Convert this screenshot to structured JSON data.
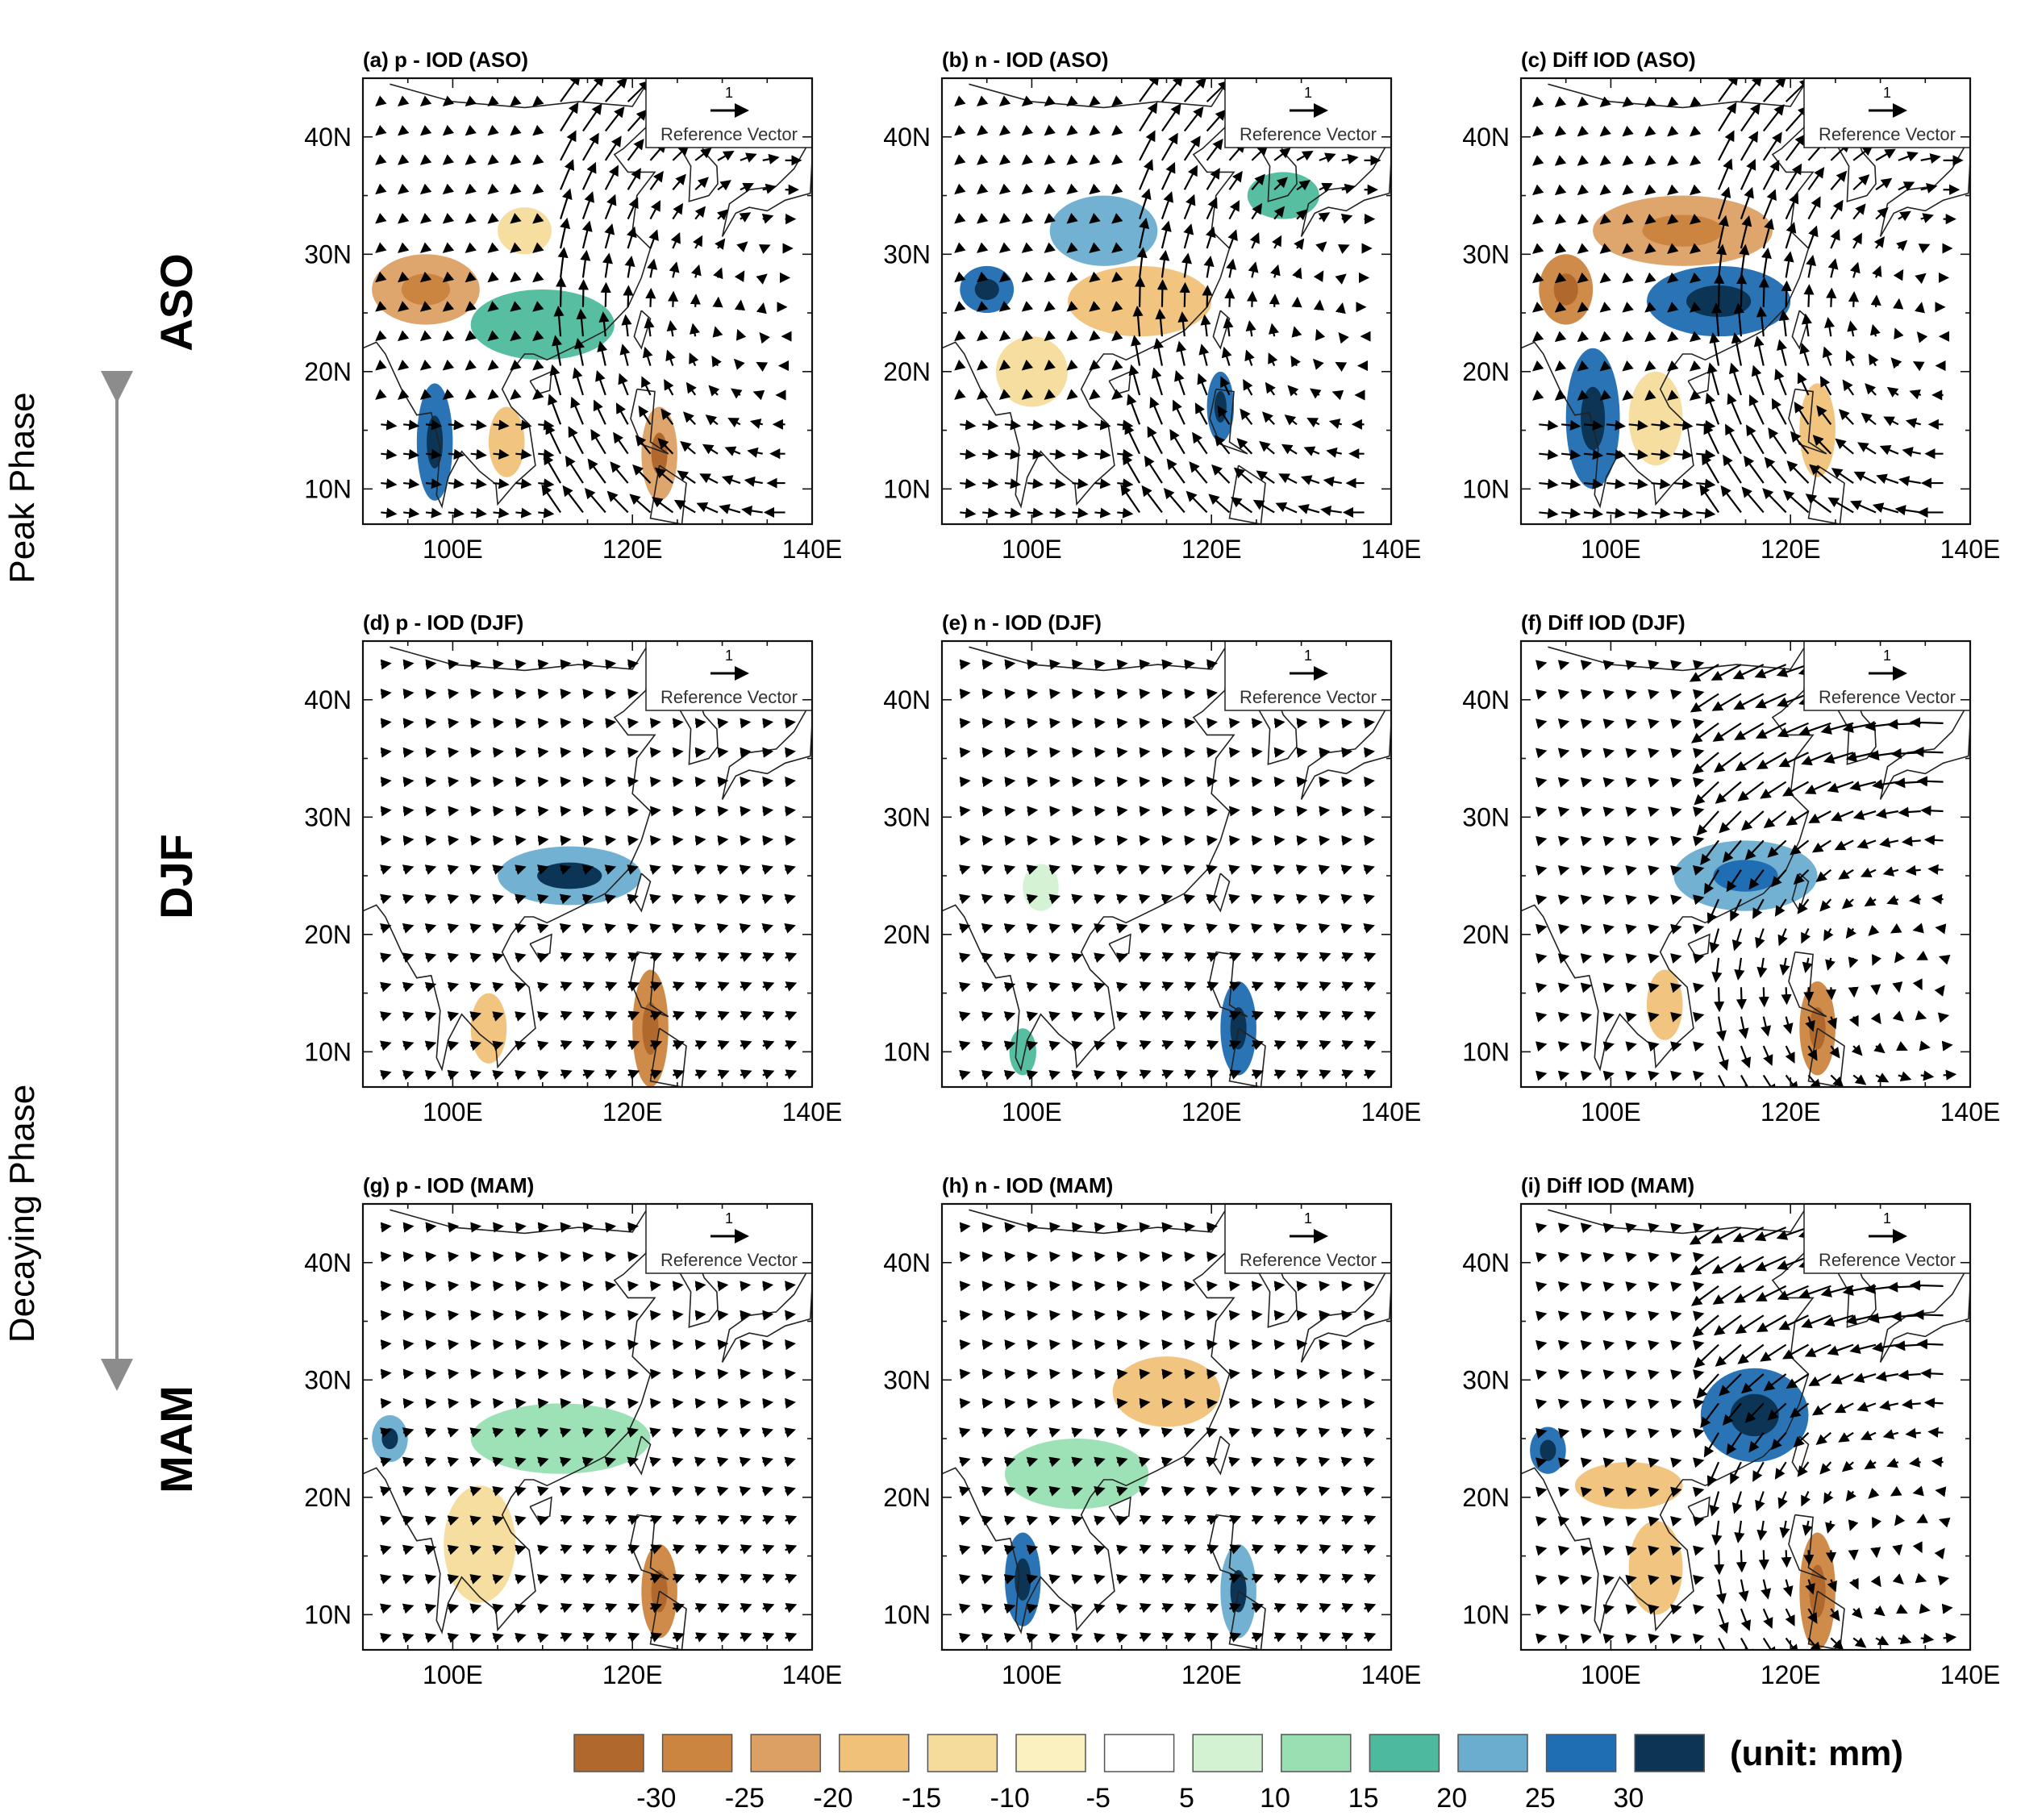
{
  "chart_data": {
    "type": "map-contour-vector",
    "rows": [
      {
        "season_label": "ASO"
      },
      {
        "season_label": "DJF"
      },
      {
        "season_label": "MAM"
      }
    ],
    "phases": {
      "peak": "Peak Phase",
      "decaying": "Decaying Phase"
    },
    "panels": [
      {
        "title": "(a) p - IOD (ASO)",
        "vector_pattern": "cyclone",
        "blobs": [
          {
            "lon": 97,
            "lat": 27,
            "rx": 6,
            "ry": 3,
            "v": -22
          },
          {
            "lon": 110,
            "lat": 24,
            "rx": 8,
            "ry": 3,
            "v": 18
          },
          {
            "lon": 98,
            "lat": 14,
            "rx": 2,
            "ry": 5,
            "v": 28
          },
          {
            "lon": 108,
            "lat": 32,
            "rx": 3,
            "ry": 2,
            "v": -14
          },
          {
            "lon": 123,
            "lat": 13,
            "rx": 2,
            "ry": 4,
            "v": -25
          },
          {
            "lon": 106,
            "lat": 14,
            "rx": 2,
            "ry": 3,
            "v": -18
          }
        ]
      },
      {
        "title": "(b) n - IOD (ASO)",
        "vector_pattern": "cyclone",
        "blobs": [
          {
            "lon": 108,
            "lat": 32,
            "rx": 6,
            "ry": 3,
            "v": 20
          },
          {
            "lon": 112,
            "lat": 26,
            "rx": 8,
            "ry": 3,
            "v": -17
          },
          {
            "lon": 95,
            "lat": 27,
            "rx": 3,
            "ry": 2,
            "v": 26
          },
          {
            "lon": 121,
            "lat": 17,
            "rx": 1.5,
            "ry": 3,
            "v": 27
          },
          {
            "lon": 100,
            "lat": 20,
            "rx": 4,
            "ry": 3,
            "v": -12
          },
          {
            "lon": 128,
            "lat": 35,
            "rx": 4,
            "ry": 2,
            "v": 18
          }
        ]
      },
      {
        "title": "(c) Diff IOD (ASO)",
        "vector_pattern": "cyclone-strong",
        "blobs": [
          {
            "lon": 108,
            "lat": 32,
            "rx": 10,
            "ry": 3,
            "v": -22
          },
          {
            "lon": 112,
            "lat": 26,
            "rx": 8,
            "ry": 3,
            "v": 28
          },
          {
            "lon": 95,
            "lat": 27,
            "rx": 3,
            "ry": 3,
            "v": -26
          },
          {
            "lon": 98,
            "lat": 16,
            "rx": 3,
            "ry": 6,
            "v": 27
          },
          {
            "lon": 105,
            "lat": 16,
            "rx": 3,
            "ry": 4,
            "v": -15
          },
          {
            "lon": 123,
            "lat": 15,
            "rx": 2,
            "ry": 4,
            "v": -20
          }
        ]
      },
      {
        "title": "(d) p - IOD (DJF)",
        "vector_pattern": "westerly",
        "blobs": [
          {
            "lon": 113,
            "lat": 25,
            "rx": 8,
            "ry": 2.5,
            "v": 24
          },
          {
            "lon": 122,
            "lat": 12,
            "rx": 2,
            "ry": 5,
            "v": -27
          },
          {
            "lon": 104,
            "lat": 12,
            "rx": 2,
            "ry": 3,
            "v": -18
          }
        ]
      },
      {
        "title": "(e) n - IOD (DJF)",
        "vector_pattern": "westerly",
        "blobs": [
          {
            "lon": 123,
            "lat": 12,
            "rx": 2,
            "ry": 4,
            "v": 26
          },
          {
            "lon": 101,
            "lat": 24,
            "rx": 2,
            "ry": 2,
            "v": 8
          },
          {
            "lon": 99,
            "lat": 10,
            "rx": 1.5,
            "ry": 2,
            "v": 16
          }
        ]
      },
      {
        "title": "(f) Diff IOD (DJF)",
        "vector_pattern": "anticyclone",
        "blobs": [
          {
            "lon": 115,
            "lat": 25,
            "rx": 8,
            "ry": 3,
            "v": 22
          },
          {
            "lon": 123,
            "lat": 12,
            "rx": 2,
            "ry": 4,
            "v": -28
          },
          {
            "lon": 106,
            "lat": 14,
            "rx": 2,
            "ry": 3,
            "v": -16
          }
        ]
      },
      {
        "title": "(g) p - IOD (MAM)",
        "vector_pattern": "westerly",
        "blobs": [
          {
            "lon": 112,
            "lat": 25,
            "rx": 10,
            "ry": 3,
            "v": 12
          },
          {
            "lon": 103,
            "lat": 16,
            "rx": 4,
            "ry": 5,
            "v": -12
          },
          {
            "lon": 123,
            "lat": 12,
            "rx": 2,
            "ry": 4,
            "v": -26
          },
          {
            "lon": 93,
            "lat": 25,
            "rx": 2,
            "ry": 2,
            "v": 24
          }
        ]
      },
      {
        "title": "(h) n - IOD (MAM)",
        "vector_pattern": "westerly",
        "blobs": [
          {
            "lon": 115,
            "lat": 29,
            "rx": 6,
            "ry": 3,
            "v": -18
          },
          {
            "lon": 105,
            "lat": 22,
            "rx": 8,
            "ry": 3,
            "v": 14
          },
          {
            "lon": 99,
            "lat": 13,
            "rx": 2,
            "ry": 4,
            "v": 27
          },
          {
            "lon": 123,
            "lat": 12,
            "rx": 2,
            "ry": 4,
            "v": 24
          }
        ]
      },
      {
        "title": "(i) Diff IOD (MAM)",
        "vector_pattern": "anticyclone",
        "blobs": [
          {
            "lon": 116,
            "lat": 27,
            "rx": 6,
            "ry": 4,
            "v": 27
          },
          {
            "lon": 102,
            "lat": 21,
            "rx": 6,
            "ry": 2,
            "v": -18
          },
          {
            "lon": 123,
            "lat": 12,
            "rx": 2,
            "ry": 5,
            "v": -28
          },
          {
            "lon": 93,
            "lat": 24,
            "rx": 2,
            "ry": 2,
            "v": 26
          },
          {
            "lon": 105,
            "lat": 14,
            "rx": 3,
            "ry": 4,
            "v": -20
          }
        ]
      }
    ],
    "axes": {
      "xlim": [
        90,
        140
      ],
      "ylim": [
        7,
        45
      ],
      "x_ticks": [
        100,
        120,
        140
      ],
      "x_tick_labels": [
        "100E",
        "120E",
        "140E"
      ],
      "y_ticks": [
        10,
        20,
        30,
        40
      ],
      "y_tick_labels": [
        "10N",
        "20N",
        "30N",
        "40N"
      ]
    },
    "reference_vector": {
      "magnitude": "1",
      "label": "Reference Vector"
    },
    "colorbar": {
      "levels": [
        "-30",
        "-25",
        "-20",
        "-15",
        "-10",
        "-5",
        "5",
        "10",
        "15",
        "20",
        "25",
        "30"
      ],
      "colors": [
        "#b1682c",
        "#cb8540",
        "#dca065",
        "#f0c279",
        "#f6dc9c",
        "#fbf1c0",
        "#ffffff",
        "#d3f2d2",
        "#98dfb2",
        "#4eba9d",
        "#6aadcf",
        "#1f6db2",
        "#0b3455"
      ],
      "unit_label": "(unit: mm)"
    }
  }
}
